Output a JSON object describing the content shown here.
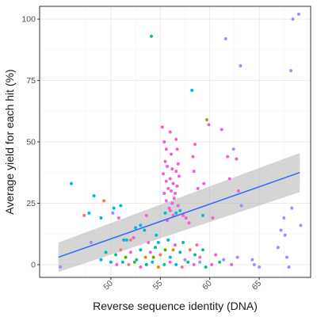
{
  "chart_data": {
    "type": "scatter",
    "xlabel": "Reverse sequence identity (DNA)",
    "ylabel": "Average yield for each hit (%)",
    "xlim": [
      42.8,
      70.2
    ],
    "ylim": [
      -5.2,
      105.2
    ],
    "x_ticks": [
      50,
      55,
      60,
      65
    ],
    "x_tick_labels": [
      "50",
      "55",
      "60",
      "65"
    ],
    "x_tick_rotation": -45,
    "y_ticks": [
      0,
      25,
      50,
      75,
      100
    ],
    "y_tick_labels": [
      "0",
      "25",
      "50",
      "75",
      "100"
    ],
    "grid": true,
    "legend": "none",
    "point_colors": {
      "pink": "#f35fd1",
      "cyan": "#00b8e5",
      "teal": "#00bfa0",
      "purple": "#a58aff",
      "red": "#f8766d",
      "green": "#53b400",
      "olive": "#a3a500",
      "orange": "#de8c00"
    },
    "trend": {
      "method": "linear fit with confidence band",
      "x": [
        44.7,
        69.1
      ],
      "y": [
        3.0,
        37.5
      ],
      "ci_lower": [
        -3.0,
        29.5
      ],
      "ci_upper": [
        9.0,
        45.5
      ],
      "line_color": "#3366ff",
      "band_color": "#b3b3b3"
    },
    "points": [
      {
        "x": 44.9,
        "y": -1,
        "c": "purple"
      },
      {
        "x": 46.0,
        "y": 33,
        "c": "cyan"
      },
      {
        "x": 47.3,
        "y": 20,
        "c": "red"
      },
      {
        "x": 47.8,
        "y": 21,
        "c": "cyan"
      },
      {
        "x": 48.3,
        "y": 28,
        "c": "cyan"
      },
      {
        "x": 49.0,
        "y": 19,
        "c": "cyan"
      },
      {
        "x": 49.3,
        "y": 26,
        "c": "red"
      },
      {
        "x": 50.2,
        "y": 21,
        "c": "purple"
      },
      {
        "x": 50.3,
        "y": 23,
        "c": "cyan"
      },
      {
        "x": 50.8,
        "y": 19,
        "c": "pink"
      },
      {
        "x": 51.0,
        "y": 24,
        "c": "cyan"
      },
      {
        "x": 51.3,
        "y": 10,
        "c": "cyan"
      },
      {
        "x": 51.6,
        "y": 10,
        "c": "cyan"
      },
      {
        "x": 52.3,
        "y": 11,
        "c": "pink"
      },
      {
        "x": 52.5,
        "y": 15,
        "c": "cyan"
      },
      {
        "x": 53.0,
        "y": 16,
        "c": "cyan"
      },
      {
        "x": 53.4,
        "y": 14,
        "c": "teal"
      },
      {
        "x": 53.6,
        "y": 20,
        "c": "pink"
      },
      {
        "x": 54.1,
        "y": 93,
        "c": "teal"
      },
      {
        "x": 54.6,
        "y": 12,
        "c": "cyan"
      },
      {
        "x": 54.8,
        "y": 9,
        "c": "cyan"
      },
      {
        "x": 55.2,
        "y": 56,
        "c": "pink"
      },
      {
        "x": 55.4,
        "y": 50,
        "c": "pink"
      },
      {
        "x": 55.6,
        "y": 47,
        "c": "pink"
      },
      {
        "x": 55.5,
        "y": 42,
        "c": "pink"
      },
      {
        "x": 55.7,
        "y": 40,
        "c": "pink"
      },
      {
        "x": 55.3,
        "y": 37,
        "c": "pink"
      },
      {
        "x": 55.6,
        "y": 34,
        "c": "pink"
      },
      {
        "x": 55.8,
        "y": 31,
        "c": "pink"
      },
      {
        "x": 55.4,
        "y": 29,
        "c": "pink"
      },
      {
        "x": 55.6,
        "y": 26,
        "c": "pink"
      },
      {
        "x": 55.9,
        "y": 23,
        "c": "pink"
      },
      {
        "x": 55.5,
        "y": 21,
        "c": "cyan"
      },
      {
        "x": 55.7,
        "y": 18,
        "c": "pink"
      },
      {
        "x": 56.0,
        "y": 54,
        "c": "pink"
      },
      {
        "x": 56.1,
        "y": 45,
        "c": "pink"
      },
      {
        "x": 56.2,
        "y": 39,
        "c": "pink"
      },
      {
        "x": 56.0,
        "y": 35,
        "c": "pink"
      },
      {
        "x": 56.3,
        "y": 33,
        "c": "pink"
      },
      {
        "x": 56.1,
        "y": 30,
        "c": "pink"
      },
      {
        "x": 56.4,
        "y": 27,
        "c": "pink"
      },
      {
        "x": 56.2,
        "y": 25,
        "c": "pink"
      },
      {
        "x": 56.0,
        "y": 22,
        "c": "pink"
      },
      {
        "x": 56.3,
        "y": 20,
        "c": "pink"
      },
      {
        "x": 56.6,
        "y": 51,
        "c": "pink"
      },
      {
        "x": 56.7,
        "y": 47,
        "c": "pink"
      },
      {
        "x": 56.8,
        "y": 41,
        "c": "pink"
      },
      {
        "x": 56.6,
        "y": 38,
        "c": "pink"
      },
      {
        "x": 56.9,
        "y": 36,
        "c": "pink"
      },
      {
        "x": 56.7,
        "y": 32,
        "c": "pink"
      },
      {
        "x": 56.5,
        "y": 29,
        "c": "pink"
      },
      {
        "x": 56.8,
        "y": 24,
        "c": "pink"
      },
      {
        "x": 56.6,
        "y": 21,
        "c": "cyan"
      },
      {
        "x": 57.0,
        "y": 22,
        "c": "cyan"
      },
      {
        "x": 57.3,
        "y": 20,
        "c": "pink"
      },
      {
        "x": 57.6,
        "y": 19,
        "c": "pink"
      },
      {
        "x": 57.9,
        "y": 17,
        "c": "pink"
      },
      {
        "x": 58.2,
        "y": 71,
        "c": "cyan"
      },
      {
        "x": 58.3,
        "y": 44,
        "c": "pink"
      },
      {
        "x": 58.5,
        "y": 49,
        "c": "pink"
      },
      {
        "x": 58.4,
        "y": 38,
        "c": "pink"
      },
      {
        "x": 58.8,
        "y": 31,
        "c": "pink"
      },
      {
        "x": 59.4,
        "y": 33,
        "c": "pink"
      },
      {
        "x": 59.7,
        "y": 59,
        "c": "olive"
      },
      {
        "x": 59.9,
        "y": 57,
        "c": "pink"
      },
      {
        "x": 59.3,
        "y": 20,
        "c": "cyan"
      },
      {
        "x": 60.3,
        "y": 19,
        "c": "pink"
      },
      {
        "x": 61.2,
        "y": 55,
        "c": "pink"
      },
      {
        "x": 61.6,
        "y": 92,
        "c": "purple"
      },
      {
        "x": 61.8,
        "y": 44,
        "c": "pink"
      },
      {
        "x": 62.0,
        "y": 35,
        "c": "pink"
      },
      {
        "x": 62.4,
        "y": 47,
        "c": "purple"
      },
      {
        "x": 62.7,
        "y": 43,
        "c": "pink"
      },
      {
        "x": 62.9,
        "y": 30,
        "c": "pink"
      },
      {
        "x": 63.1,
        "y": 81,
        "c": "purple"
      },
      {
        "x": 63.2,
        "y": 24,
        "c": "purple"
      },
      {
        "x": 64.3,
        "y": 2,
        "c": "purple"
      },
      {
        "x": 64.5,
        "y": 0,
        "c": "purple"
      },
      {
        "x": 65.0,
        "y": -1,
        "c": "purple"
      },
      {
        "x": 66.9,
        "y": 7,
        "c": "purple"
      },
      {
        "x": 67.2,
        "y": 14,
        "c": "purple"
      },
      {
        "x": 67.5,
        "y": 19,
        "c": "purple"
      },
      {
        "x": 67.6,
        "y": 12,
        "c": "purple"
      },
      {
        "x": 67.8,
        "y": 3,
        "c": "purple"
      },
      {
        "x": 68.0,
        "y": -1,
        "c": "purple"
      },
      {
        "x": 68.3,
        "y": 23,
        "c": "purple"
      },
      {
        "x": 68.2,
        "y": 79,
        "c": "purple"
      },
      {
        "x": 68.4,
        "y": 100,
        "c": "purple"
      },
      {
        "x": 69.0,
        "y": 102,
        "c": "purple"
      },
      {
        "x": 69.2,
        "y": 16,
        "c": "purple"
      },
      {
        "x": 50.5,
        "y": 4,
        "c": "teal"
      },
      {
        "x": 51.0,
        "y": 6,
        "c": "red"
      },
      {
        "x": 51.5,
        "y": 3,
        "c": "green"
      },
      {
        "x": 52.0,
        "y": 5,
        "c": "pink"
      },
      {
        "x": 52.6,
        "y": 2,
        "c": "cyan"
      },
      {
        "x": 53.0,
        "y": 6,
        "c": "teal"
      },
      {
        "x": 53.5,
        "y": 3,
        "c": "orange"
      },
      {
        "x": 54.0,
        "y": 5,
        "c": "pink"
      },
      {
        "x": 54.5,
        "y": 7,
        "c": "teal"
      },
      {
        "x": 55.0,
        "y": 4,
        "c": "red"
      },
      {
        "x": 55.5,
        "y": 6,
        "c": "green"
      },
      {
        "x": 56.0,
        "y": 3,
        "c": "cyan"
      },
      {
        "x": 56.5,
        "y": 8,
        "c": "pink"
      },
      {
        "x": 57.0,
        "y": 5,
        "c": "teal"
      },
      {
        "x": 57.5,
        "y": 2,
        "c": "purple"
      },
      {
        "x": 58.0,
        "y": 6,
        "c": "red"
      },
      {
        "x": 58.5,
        "y": 4,
        "c": "teal"
      },
      {
        "x": 59.0,
        "y": 3,
        "c": "pink"
      },
      {
        "x": 50.0,
        "y": 1,
        "c": "cyan"
      },
      {
        "x": 50.6,
        "y": 0,
        "c": "pink"
      },
      {
        "x": 51.2,
        "y": 1,
        "c": "teal"
      },
      {
        "x": 51.8,
        "y": 0,
        "c": "red"
      },
      {
        "x": 52.4,
        "y": 1,
        "c": "green"
      },
      {
        "x": 53.0,
        "y": -1,
        "c": "pink"
      },
      {
        "x": 53.6,
        "y": 0,
        "c": "teal"
      },
      {
        "x": 54.2,
        "y": 1,
        "c": "cyan"
      },
      {
        "x": 54.8,
        "y": -1,
        "c": "orange"
      },
      {
        "x": 55.4,
        "y": 0,
        "c": "teal"
      },
      {
        "x": 56.0,
        "y": 1,
        "c": "pink"
      },
      {
        "x": 56.6,
        "y": 0,
        "c": "cyan"
      },
      {
        "x": 57.2,
        "y": -1,
        "c": "red"
      },
      {
        "x": 57.8,
        "y": 1,
        "c": "teal"
      },
      {
        "x": 58.4,
        "y": 0,
        "c": "pink"
      },
      {
        "x": 59.0,
        "y": 1,
        "c": "purple"
      },
      {
        "x": 59.6,
        "y": -1,
        "c": "teal"
      },
      {
        "x": 60.2,
        "y": 0,
        "c": "pink"
      },
      {
        "x": 48.0,
        "y": 9,
        "c": "purple"
      },
      {
        "x": 49.0,
        "y": 2,
        "c": "cyan"
      },
      {
        "x": 49.5,
        "y": 5,
        "c": "teal"
      },
      {
        "x": 52.0,
        "y": 10,
        "c": "red"
      },
      {
        "x": 53.8,
        "y": 9,
        "c": "pink"
      },
      {
        "x": 54.3,
        "y": 3,
        "c": "green"
      },
      {
        "x": 55.8,
        "y": 10,
        "c": "cyan"
      },
      {
        "x": 56.3,
        "y": 6,
        "c": "orange"
      },
      {
        "x": 57.3,
        "y": 9,
        "c": "teal"
      },
      {
        "x": 58.7,
        "y": 8,
        "c": "red"
      },
      {
        "x": 59.3,
        "y": 6,
        "c": "teal"
      },
      {
        "x": 60.6,
        "y": 4,
        "c": "pink"
      },
      {
        "x": 61.0,
        "y": 1,
        "c": "teal"
      },
      {
        "x": 61.4,
        "y": 2,
        "c": "purple"
      },
      {
        "x": 62.2,
        "y": 0,
        "c": "pink"
      },
      {
        "x": 62.8,
        "y": 3,
        "c": "purple"
      }
    ]
  }
}
